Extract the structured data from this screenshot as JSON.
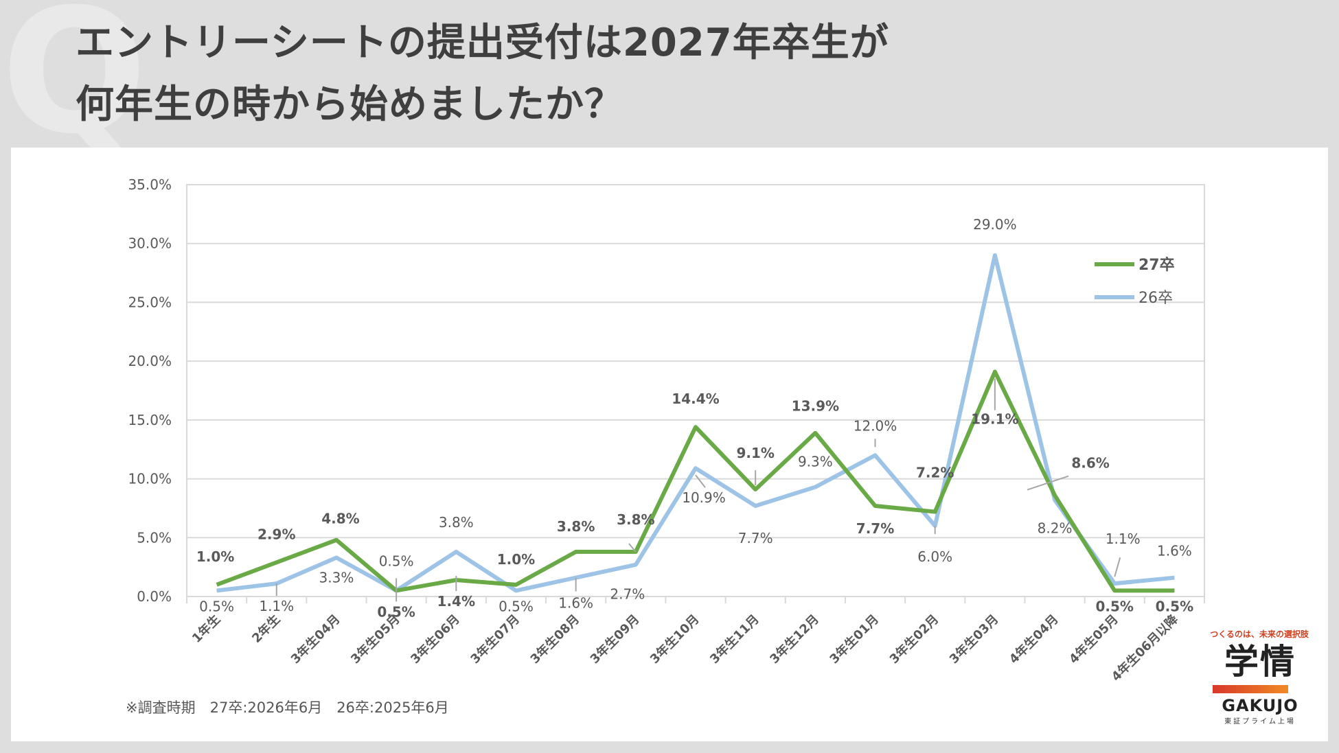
{
  "page": {
    "title_line1": "エントリーシートの提出受付は2027年卒生が",
    "title_line2": "何年生の時から始めましたか？",
    "watermark": "Q",
    "footnote": "※調査時期　27卒:2026年6月　26卒:2025年6月"
  },
  "logo": {
    "tagline": "つくるのは、未来の選択肢",
    "name_kanji": "学情",
    "name_en": "GAKUJO",
    "subtitle": "東証プライム上場"
  },
  "chart_data": {
    "type": "line",
    "categories": [
      "1年生",
      "2年生",
      "3年生04月",
      "3年生05月",
      "3年生06月",
      "3年生07月",
      "3年生08月",
      "3年生09月",
      "3年生10月",
      "3年生11月",
      "3年生12月",
      "3年生01月",
      "3年生02月",
      "3年生03月",
      "4年生04月",
      "4年生05月",
      "4年生06月以降"
    ],
    "series": [
      {
        "name": "27卒",
        "color": "#6aaa46",
        "values": [
          1.0,
          2.9,
          4.8,
          0.5,
          1.4,
          1.0,
          3.8,
          3.8,
          14.4,
          9.1,
          13.9,
          7.7,
          7.2,
          19.1,
          8.6,
          0.5,
          0.5
        ],
        "labels": [
          "1.0%",
          "2.9%",
          "4.8%",
          "0.5%",
          "1.4%",
          "1.0%",
          "3.8%",
          "3.8%",
          "14.4%",
          "9.1%",
          "13.9%",
          "7.7%",
          "7.2%",
          "19.1%",
          "8.6%",
          "0.5%",
          "0.5%"
        ]
      },
      {
        "name": "26卒",
        "color": "#9dc3e6",
        "values": [
          0.5,
          1.1,
          3.3,
          0.5,
          3.8,
          0.5,
          1.6,
          2.7,
          10.9,
          7.7,
          9.3,
          12.0,
          6.0,
          29.0,
          8.2,
          1.1,
          1.6
        ],
        "labels": [
          "0.5%",
          "1.1%",
          "3.3%",
          "0.5%",
          "3.8%",
          "0.5%",
          "1.6%",
          "2.7%",
          "10.9%",
          "7.7%",
          "9.3%",
          "12.0%",
          "6.0%",
          "29.0%",
          "8.2%",
          "1.1%",
          "1.6%"
        ]
      }
    ],
    "yticks": [
      "0.0%",
      "5.0%",
      "10.0%",
      "15.0%",
      "20.0%",
      "25.0%",
      "30.0%",
      "35.0%"
    ],
    "ylim": [
      0,
      35
    ],
    "grid": true,
    "legend": "top-right"
  }
}
